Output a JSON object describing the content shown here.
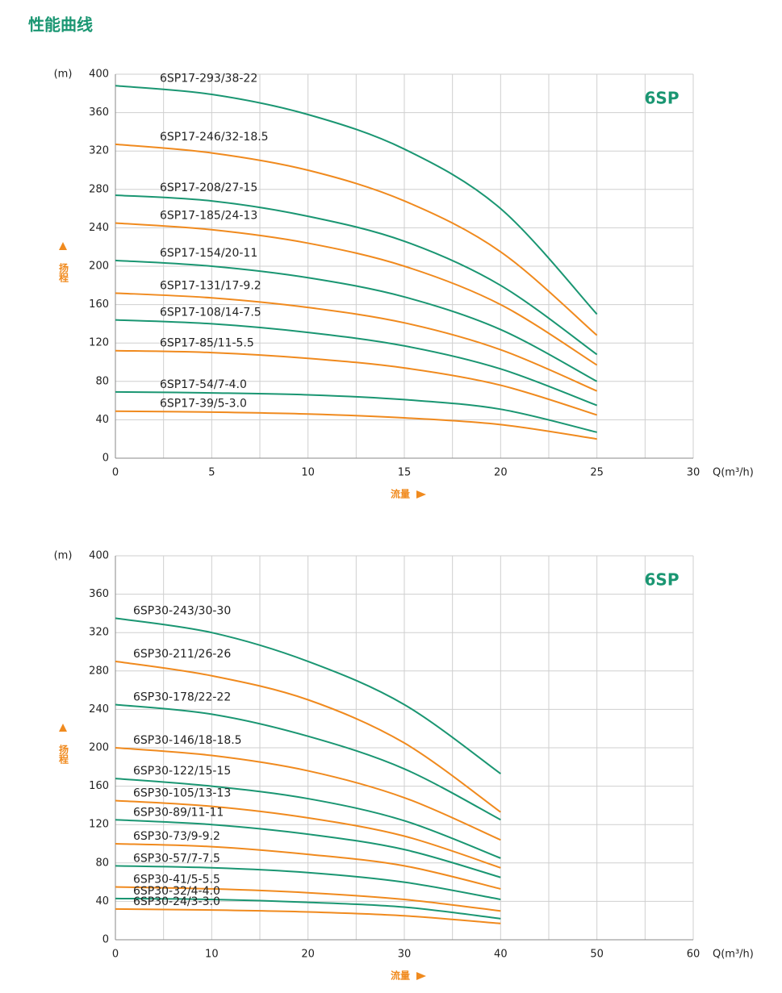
{
  "title": "性能曲线",
  "chart_data": [
    {
      "type": "line",
      "annotation": "6SP",
      "y_unit": "(m)",
      "y_label": "扬程",
      "x_label": "流量",
      "x_unit": "Q(m³/h)",
      "x": [
        0,
        5,
        10,
        15,
        20,
        25
      ],
      "xlim": [
        0,
        30
      ],
      "ylim": [
        0,
        400
      ],
      "xticks": [
        0,
        5,
        10,
        15,
        20,
        25,
        30
      ],
      "yticks": [
        0,
        40,
        80,
        120,
        160,
        200,
        240,
        280,
        320,
        360,
        400
      ],
      "grid": true,
      "series": [
        {
          "name": "6SP17-293/38-22",
          "color": "#1a9672",
          "values": [
            388,
            379,
            358,
            322,
            260,
            150
          ]
        },
        {
          "name": "6SP17-246/32-18.5",
          "color": "#f08a1e",
          "values": [
            327,
            318,
            300,
            268,
            215,
            128
          ]
        },
        {
          "name": "6SP17-208/27-15",
          "color": "#1a9672",
          "values": [
            274,
            268,
            252,
            226,
            180,
            108
          ]
        },
        {
          "name": "6SP17-185/24-13",
          "color": "#f08a1e",
          "values": [
            245,
            238,
            224,
            200,
            160,
            97
          ]
        },
        {
          "name": "6SP17-154/20-11",
          "color": "#1a9672",
          "values": [
            206,
            200,
            188,
            168,
            134,
            80
          ]
        },
        {
          "name": "6SP17-131/17-9.2",
          "color": "#f08a1e",
          "values": [
            172,
            167,
            157,
            141,
            113,
            70
          ]
        },
        {
          "name": "6SP17-108/14-7.5",
          "color": "#1a9672",
          "values": [
            144,
            140,
            131,
            117,
            93,
            55
          ]
        },
        {
          "name": "6SP17-85/11-5.5",
          "color": "#f08a1e",
          "values": [
            112,
            110,
            104,
            94,
            76,
            45
          ]
        },
        {
          "name": "6SP17-54/7-4.0",
          "color": "#1a9672",
          "values": [
            69,
            68,
            66,
            61,
            51,
            27
          ]
        },
        {
          "name": "6SP17-39/5-3.0",
          "color": "#f08a1e",
          "values": [
            49,
            48,
            46,
            42,
            35,
            20
          ]
        }
      ]
    },
    {
      "type": "line",
      "annotation": "6SP",
      "y_unit": "(m)",
      "y_label": "扬程",
      "x_label": "流量",
      "x_unit": "Q(m³/h)",
      "x": [
        0,
        10,
        20,
        30,
        40
      ],
      "xlim": [
        0,
        60
      ],
      "ylim": [
        0,
        400
      ],
      "xticks": [
        0,
        10,
        20,
        30,
        40,
        50,
        60
      ],
      "yticks": [
        0,
        40,
        80,
        120,
        160,
        200,
        240,
        280,
        320,
        360,
        400
      ],
      "grid": true,
      "series": [
        {
          "name": "6SP30-243/30-30",
          "color": "#1a9672",
          "values": [
            335,
            320,
            290,
            245,
            173
          ]
        },
        {
          "name": "6SP30-211/26-26",
          "color": "#f08a1e",
          "values": [
            290,
            275,
            250,
            205,
            133
          ]
        },
        {
          "name": "6SP30-178/22-22",
          "color": "#1a9672",
          "values": [
            245,
            235,
            212,
            178,
            125
          ]
        },
        {
          "name": "6SP30-146/18-18.5",
          "color": "#f08a1e",
          "values": [
            200,
            192,
            176,
            148,
            104
          ]
        },
        {
          "name": "6SP30-122/15-15",
          "color": "#1a9672",
          "values": [
            168,
            160,
            147,
            124,
            85
          ]
        },
        {
          "name": "6SP30-105/13-13",
          "color": "#f08a1e",
          "values": [
            145,
            139,
            127,
            108,
            75
          ]
        },
        {
          "name": "6SP30-89/11-11",
          "color": "#1a9672",
          "values": [
            125,
            120,
            110,
            94,
            65
          ]
        },
        {
          "name": "6SP30-73/9-9.2",
          "color": "#f08a1e",
          "values": [
            100,
            97,
            89,
            77,
            53
          ]
        },
        {
          "name": "6SP30-57/7-7.5",
          "color": "#1a9672",
          "values": [
            77,
            75,
            70,
            60,
            42
          ]
        },
        {
          "name": "6SP30-41/5-5.5",
          "color": "#f08a1e",
          "values": [
            55,
            53,
            49,
            42,
            30
          ]
        },
        {
          "name": "6SP30-32/4-4.0",
          "color": "#1a9672",
          "values": [
            43,
            42,
            39,
            34,
            22
          ]
        },
        {
          "name": "6SP30-24/3-3.0",
          "color": "#f08a1e",
          "values": [
            32,
            31,
            29,
            25,
            17
          ]
        }
      ]
    }
  ]
}
